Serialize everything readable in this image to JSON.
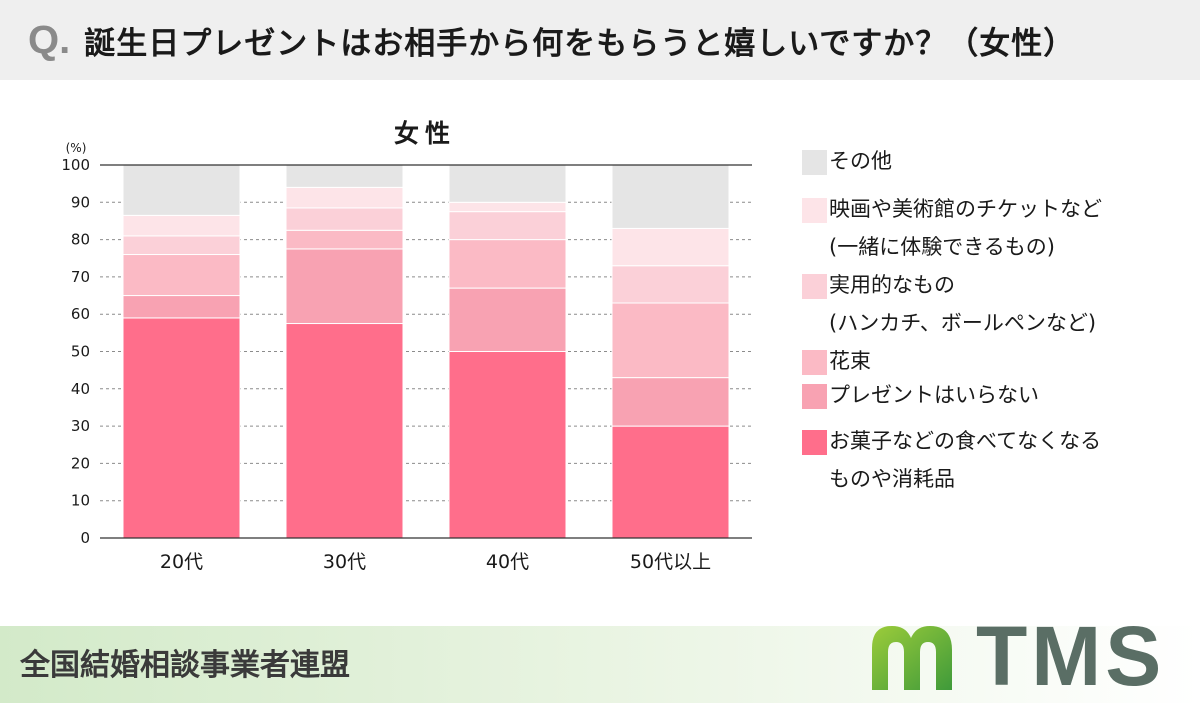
{
  "header": {
    "q_mark": "Q.",
    "question": "誕生日プレゼントはお相手から何をもらうと嬉しいですか？（女性）"
  },
  "footer": {
    "organization": "全国結婚相談事業者連盟",
    "logo_text": "TMS",
    "logo_icon": "tms-leaf-m-icon"
  },
  "chart_data": {
    "type": "bar",
    "stacked": true,
    "title": "女性",
    "unit_label": "(%)",
    "ylim": [
      0,
      100
    ],
    "yticks": [
      0,
      10,
      20,
      30,
      40,
      50,
      60,
      70,
      80,
      90,
      100
    ],
    "grid": true,
    "legend_position": "right",
    "categories": [
      "20代",
      "30代",
      "40代",
      "50代以上"
    ],
    "series": [
      {
        "name": "お菓子などの食べてなくなる\nものや消耗品",
        "color": "#ff6e8b",
        "values": [
          59,
          57.5,
          50,
          30
        ]
      },
      {
        "name": "プレゼントはいらない",
        "color": "#f8a2b2",
        "values": [
          6,
          20,
          17,
          13
        ]
      },
      {
        "name": "花束",
        "color": "#fbbac5",
        "values": [
          11,
          5,
          13,
          20
        ]
      },
      {
        "name": "実用的なもの\n(ハンカチ、ボールペンなど)",
        "color": "#fbd0d8",
        "values": [
          5,
          6,
          7.5,
          10
        ]
      },
      {
        "name": "映画や美術館のチケットなど\n(一緒に体験できるもの)",
        "color": "#fde4e8",
        "values": [
          5.5,
          5.5,
          2.5,
          10
        ]
      },
      {
        "name": "その他",
        "color": "#e5e5e5",
        "values": [
          13.5,
          6,
          10,
          17
        ]
      }
    ]
  }
}
